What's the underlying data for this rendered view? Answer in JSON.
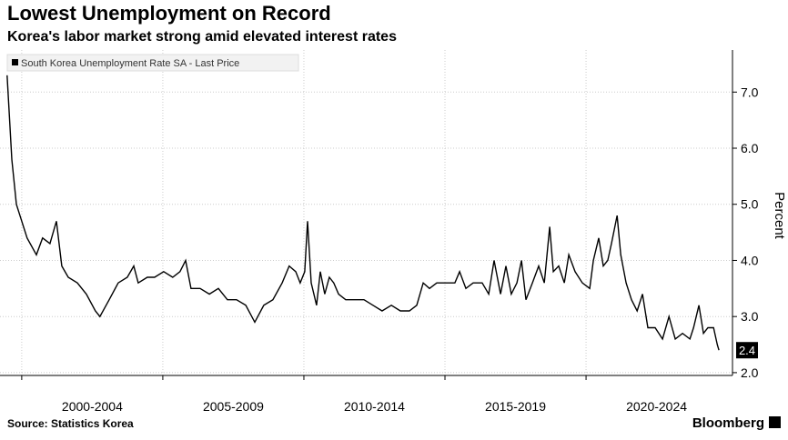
{
  "chart_data": {
    "type": "line",
    "title": "Lowest Unemployment on Record",
    "subtitle": "Korea's labor market strong amid elevated interest rates",
    "y_label": "Percent",
    "source": "Source: Statistics Korea",
    "brand": "Bloomberg",
    "xlim": [
      1999.23,
      2025.19
    ],
    "xgrid": [
      2000,
      2005,
      2010,
      2015,
      2020
    ],
    "xticks": [
      {
        "value": 2002.5,
        "label": "2000-2004"
      },
      {
        "value": 2007.5,
        "label": "2005-2009"
      },
      {
        "value": 2012.5,
        "label": "2010-2014"
      },
      {
        "value": 2017.5,
        "label": "2015-2019"
      },
      {
        "value": 2022.5,
        "label": "2020-2024"
      }
    ],
    "ylim": [
      1.95,
      7.75
    ],
    "yticks": [
      {
        "value": 2,
        "label": "2.0"
      },
      {
        "value": 3,
        "label": "3.0"
      },
      {
        "value": 4,
        "label": "4.0"
      },
      {
        "value": 5,
        "label": "5.0"
      },
      {
        "value": 6,
        "label": "6.0"
      },
      {
        "value": 7,
        "label": "7.0"
      }
    ],
    "grid": true,
    "legend": "top-left",
    "x": [
      1999.48,
      1999.65,
      1999.81,
      2000.0,
      2000.19,
      2000.52,
      2000.74,
      2001.0,
      2001.23,
      2001.42,
      2001.65,
      2001.97,
      2002.29,
      2002.61,
      2002.77,
      2003.1,
      2003.42,
      2003.74,
      2003.97,
      2004.13,
      2004.45,
      2004.71,
      2005.03,
      2005.35,
      2005.61,
      2005.81,
      2006.0,
      2006.32,
      2006.65,
      2006.97,
      2007.29,
      2007.61,
      2007.94,
      2008.26,
      2008.58,
      2008.9,
      2009.23,
      2009.48,
      2009.71,
      2009.87,
      2010.03,
      2010.13,
      2010.26,
      2010.45,
      2010.58,
      2010.74,
      2010.9,
      2011.06,
      2011.23,
      2011.48,
      2011.81,
      2012.13,
      2012.45,
      2012.77,
      2013.1,
      2013.42,
      2013.74,
      2014.0,
      2014.23,
      2014.45,
      2014.71,
      2015.03,
      2015.35,
      2015.52,
      2015.74,
      2016.0,
      2016.32,
      2016.55,
      2016.74,
      2016.97,
      2017.16,
      2017.35,
      2017.55,
      2017.71,
      2017.87,
      2018.1,
      2018.32,
      2018.52,
      2018.71,
      2018.84,
      2019.03,
      2019.23,
      2019.39,
      2019.61,
      2019.87,
      2020.13,
      2020.26,
      2020.45,
      2020.61,
      2020.77,
      2020.9,
      2021.1,
      2021.23,
      2021.42,
      2021.61,
      2021.81,
      2022.0,
      2022.19,
      2022.45,
      2022.71,
      2022.94,
      2023.16,
      2023.42,
      2023.68,
      2023.81,
      2024.0,
      2024.16,
      2024.32,
      2024.52,
      2024.65,
      2024.71
    ],
    "series": [
      {
        "name": "South Korea Unemployment Rate SA - Last Price",
        "color": "#000000",
        "values": [
          7.3,
          5.8,
          5.0,
          4.7,
          4.4,
          4.1,
          4.4,
          4.3,
          4.7,
          3.9,
          3.7,
          3.6,
          3.4,
          3.1,
          3.0,
          3.3,
          3.6,
          3.7,
          3.9,
          3.6,
          3.7,
          3.7,
          3.8,
          3.7,
          3.8,
          4.0,
          3.5,
          3.5,
          3.4,
          3.5,
          3.3,
          3.3,
          3.2,
          2.9,
          3.2,
          3.3,
          3.6,
          3.9,
          3.8,
          3.6,
          3.8,
          4.7,
          3.6,
          3.2,
          3.8,
          3.4,
          3.7,
          3.6,
          3.4,
          3.3,
          3.3,
          3.3,
          3.2,
          3.1,
          3.2,
          3.1,
          3.1,
          3.2,
          3.6,
          3.5,
          3.6,
          3.6,
          3.6,
          3.8,
          3.5,
          3.6,
          3.6,
          3.4,
          4.0,
          3.4,
          3.9,
          3.4,
          3.6,
          4.0,
          3.3,
          3.6,
          3.9,
          3.6,
          4.6,
          3.8,
          3.9,
          3.6,
          4.1,
          3.8,
          3.6,
          3.5,
          4.0,
          4.4,
          3.9,
          4.0,
          4.3,
          4.8,
          4.1,
          3.6,
          3.3,
          3.1,
          3.4,
          2.8,
          2.8,
          2.6,
          3.0,
          2.6,
          2.7,
          2.6,
          2.8,
          3.2,
          2.7,
          2.8,
          2.8,
          2.5,
          2.4
        ]
      }
    ]
  }
}
